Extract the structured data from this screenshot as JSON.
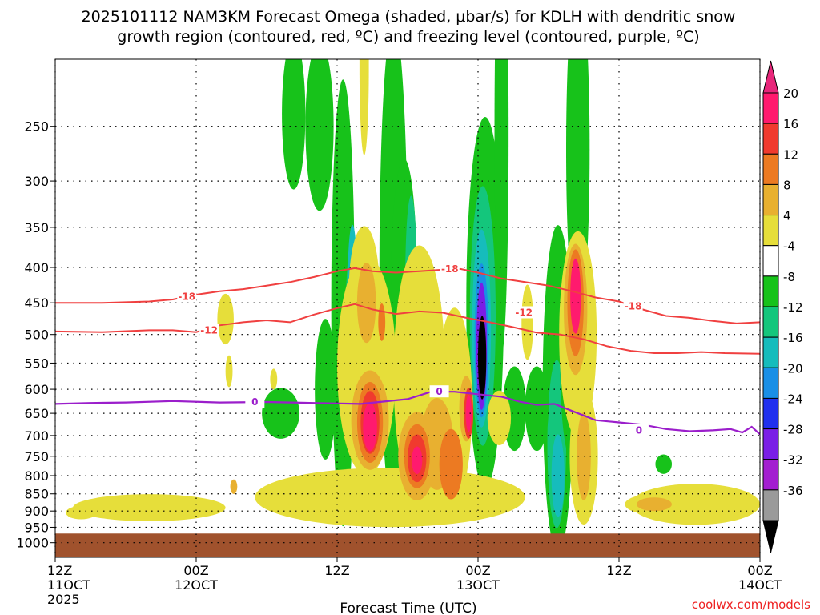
{
  "chart_data": {
    "type": "heatmap",
    "title_line1": "2025101112 NAM3KM Forecast Omega (shaded, μbar/s) for KDLH with dendritic snow",
    "title_line2": "growth region (contoured, red, ºC) and freezing level (contoured, purple, ºC)",
    "xlabel": "Forecast Time (UTC)",
    "credit": "coolwx.com/models",
    "x_range_hours": [
      0,
      60
    ],
    "x_ticks": [
      {
        "hour": 0,
        "l1": "12Z",
        "l2": "11OCT",
        "l3": "2025"
      },
      {
        "hour": 12,
        "l1": "00Z",
        "l2": "12OCT",
        "l3": ""
      },
      {
        "hour": 24,
        "l1": "12Z",
        "l2": "",
        "l3": ""
      },
      {
        "hour": 36,
        "l1": "00Z",
        "l2": "13OCT",
        "l3": ""
      },
      {
        "hour": 48,
        "l1": "12Z",
        "l2": "",
        "l3": ""
      },
      {
        "hour": 60,
        "l1": "00Z",
        "l2": "14OCT",
        "l3": ""
      }
    ],
    "y_unit": "hPa",
    "y_range": [
      200,
      1050
    ],
    "y_ticks": [
      "250",
      "300",
      "350",
      "400",
      "450",
      "500",
      "550",
      "600",
      "650",
      "700",
      "750",
      "800",
      "850",
      "900",
      "950",
      "1000"
    ],
    "colorbar": {
      "labels": [
        "20",
        "16",
        "12",
        "8",
        "4",
        "-4",
        "-8",
        "-12",
        "-16",
        "-20",
        "-24",
        "-28",
        "-32",
        "-36"
      ],
      "colors": [
        "#ff1a6e",
        "#f03a2e",
        "#ec7a22",
        "#e8b030",
        "#e6de3a",
        "#ffffff",
        "#17c21a",
        "#14c67c",
        "#16bcbc",
        "#1a8fe6",
        "#2030ee",
        "#7a1ee6",
        "#a31ed0",
        "#9a9a9a",
        "#000000"
      ],
      "top_arrow_color": "#e8267a",
      "bottom_arrow_color": "#000000"
    },
    "contour_labels": {
      "dgz_upper": "-18",
      "dgz_lower": "-12",
      "freezing": "0"
    },
    "dgz_minus18": [
      [
        0,
        450
      ],
      [
        4,
        450
      ],
      [
        8,
        448
      ],
      [
        10,
        445
      ],
      [
        12,
        438
      ],
      [
        14,
        433
      ],
      [
        16,
        430
      ],
      [
        18,
        425
      ],
      [
        20,
        420
      ],
      [
        22,
        413
      ],
      [
        24,
        405
      ],
      [
        25.5,
        401
      ],
      [
        27,
        405
      ],
      [
        29,
        407
      ],
      [
        31,
        405
      ],
      [
        33,
        403
      ],
      [
        34.5,
        402
      ],
      [
        36,
        407
      ],
      [
        38,
        415
      ],
      [
        40,
        420
      ],
      [
        42,
        425
      ],
      [
        44,
        433
      ],
      [
        46,
        442
      ],
      [
        48,
        448
      ],
      [
        50,
        460
      ],
      [
        52,
        470
      ],
      [
        54,
        473
      ],
      [
        56,
        478
      ],
      [
        58,
        482
      ],
      [
        60,
        480
      ]
    ],
    "dgz_minus12": [
      [
        0,
        495
      ],
      [
        4,
        496
      ],
      [
        8,
        493
      ],
      [
        10,
        493
      ],
      [
        12,
        496
      ],
      [
        14,
        485
      ],
      [
        16,
        480
      ],
      [
        18,
        477
      ],
      [
        20,
        480
      ],
      [
        22,
        468
      ],
      [
        24,
        458
      ],
      [
        25.5,
        452
      ],
      [
        27,
        460
      ],
      [
        29,
        467
      ],
      [
        31,
        463
      ],
      [
        33,
        465
      ],
      [
        35,
        473
      ],
      [
        37,
        480
      ],
      [
        39,
        488
      ],
      [
        41,
        497
      ],
      [
        43,
        500
      ],
      [
        45,
        508
      ],
      [
        47,
        520
      ],
      [
        49,
        528
      ],
      [
        51,
        532
      ],
      [
        53,
        532
      ],
      [
        55,
        530
      ],
      [
        57,
        532
      ],
      [
        60,
        533
      ]
    ],
    "freezing_level": [
      [
        0,
        630
      ],
      [
        3,
        628
      ],
      [
        6,
        627
      ],
      [
        10,
        624
      ],
      [
        14,
        627
      ],
      [
        18,
        626
      ],
      [
        22,
        628
      ],
      [
        26,
        630
      ],
      [
        28,
        625
      ],
      [
        30,
        620
      ],
      [
        32,
        605
      ],
      [
        34,
        605
      ],
      [
        36,
        610
      ],
      [
        38,
        615
      ],
      [
        39.5,
        625
      ],
      [
        41,
        632
      ],
      [
        42.5,
        630
      ],
      [
        44,
        645
      ],
      [
        46,
        665
      ],
      [
        48,
        670
      ],
      [
        50,
        675
      ],
      [
        52,
        685
      ],
      [
        54,
        690
      ],
      [
        56,
        688
      ],
      [
        57.5,
        685
      ],
      [
        58.5,
        693
      ],
      [
        59.3,
        680
      ],
      [
        60,
        697
      ]
    ],
    "omega_cells": [
      {
        "t": 19.2,
        "p": 650,
        "rx": 1.6,
        "rp": 55,
        "value": -8
      },
      {
        "t": 23,
        "p": 600,
        "rx": 0.9,
        "rp": 140,
        "value": -8
      },
      {
        "t": 24.5,
        "p": 450,
        "rx": 1.0,
        "rp": 320,
        "value": -8
      },
      {
        "t": 25.2,
        "p": 500,
        "rx": 0.5,
        "rp": 150,
        "value": -12
      },
      {
        "t": 25.3,
        "p": 420,
        "rx": 0.4,
        "rp": 80,
        "value": -16
      },
      {
        "t": 22.5,
        "p": 250,
        "rx": 1.2,
        "rp": 70,
        "value": -8
      },
      {
        "t": 20.3,
        "p": 240,
        "rx": 1.0,
        "rp": 60,
        "value": -8
      },
      {
        "t": 28.8,
        "p": 400,
        "rx": 1.2,
        "rp": 310,
        "value": -8
      },
      {
        "t": 29.7,
        "p": 420,
        "rx": 1.1,
        "rp": 170,
        "value": -8
      },
      {
        "t": 30.3,
        "p": 420,
        "rx": 0.5,
        "rp": 120,
        "value": -12
      },
      {
        "t": 36.6,
        "p": 450,
        "rx": 1.6,
        "rp": 270,
        "value": -8
      },
      {
        "t": 36.4,
        "p": 470,
        "rx": 1.1,
        "rp": 200,
        "value": -12
      },
      {
        "t": 36.3,
        "p": 490,
        "rx": 0.8,
        "rp": 160,
        "value": -16
      },
      {
        "t": 36.3,
        "p": 510,
        "rx": 0.6,
        "rp": 130,
        "value": -20
      },
      {
        "t": 36.3,
        "p": 520,
        "rx": 0.45,
        "rp": 110,
        "value": -28
      },
      {
        "t": 36.35,
        "p": 540,
        "rx": 0.35,
        "rp": 75,
        "value": -36
      },
      {
        "t": 38.0,
        "p": 255,
        "rx": 0.6,
        "rp": 180,
        "value": -8
      },
      {
        "t": 39.1,
        "p": 640,
        "rx": 1.0,
        "rp": 90,
        "value": -8
      },
      {
        "t": 42.8,
        "p": 600,
        "rx": 1.3,
        "rp": 320,
        "value": -8
      },
      {
        "t": 42.7,
        "p": 720,
        "rx": 0.8,
        "rp": 200,
        "value": -12
      },
      {
        "t": 42.8,
        "p": 800,
        "rx": 0.55,
        "rp": 110,
        "value": -16
      },
      {
        "t": 44.5,
        "p": 270,
        "rx": 1.0,
        "rp": 150,
        "value": -8
      },
      {
        "t": 44.0,
        "p": 560,
        "rx": 1.0,
        "rp": 170,
        "value": -8
      },
      {
        "t": 41.0,
        "p": 640,
        "rx": 1.0,
        "rp": 90,
        "value": -8
      },
      {
        "t": 51.8,
        "p": 770,
        "rx": 0.7,
        "rp": 25,
        "value": -8
      }
    ],
    "omega_positive_cells": [
      {
        "t": 28.5,
        "p": 860,
        "rx": 11.5,
        "rp": 85,
        "value": 4
      },
      {
        "t": 8.0,
        "p": 890,
        "rx": 6.5,
        "rp": 40,
        "value": 4
      },
      {
        "t": 54.5,
        "p": 880,
        "rx": 5.5,
        "rp": 60,
        "value": 4
      },
      {
        "t": 2.2,
        "p": 905,
        "rx": 1.3,
        "rp": 20,
        "value": 4
      },
      {
        "t": 14.5,
        "p": 475,
        "rx": 0.7,
        "rp": 40,
        "value": 4
      },
      {
        "t": 14.8,
        "p": 565,
        "rx": 0.3,
        "rp": 30,
        "value": 4
      },
      {
        "t": 26.5,
        "p": 555,
        "rx": 2.5,
        "rp": 200,
        "value": 4
      },
      {
        "t": 26.3,
        "p": 430,
        "rx": 1.3,
        "rp": 90,
        "value": 4
      },
      {
        "t": 31.0,
        "p": 570,
        "rx": 2.2,
        "rp": 240,
        "value": 4
      },
      {
        "t": 34.0,
        "p": 630,
        "rx": 1.5,
        "rp": 200,
        "value": 4
      },
      {
        "t": 37.8,
        "p": 660,
        "rx": 1.0,
        "rp": 60,
        "value": 4
      },
      {
        "t": 40.2,
        "p": 480,
        "rx": 0.5,
        "rp": 60,
        "value": 4
      },
      {
        "t": 44.5,
        "p": 500,
        "rx": 1.6,
        "rp": 170,
        "value": 4
      },
      {
        "t": 45.0,
        "p": 750,
        "rx": 1.2,
        "rp": 170,
        "value": 4
      },
      {
        "t": 26.3,
        "p": 205,
        "rx": 0.4,
        "rp": 60,
        "value": 4
      },
      {
        "t": 51.0,
        "p": 880,
        "rx": 2.5,
        "rp": 30,
        "value": 4
      },
      {
        "t": 18.6,
        "p": 580,
        "rx": 0.3,
        "rp": 20,
        "value": 4
      },
      {
        "t": 26.8,
        "p": 665,
        "rx": 1.6,
        "rp": 110,
        "value": 8
      },
      {
        "t": 26.5,
        "p": 450,
        "rx": 0.8,
        "rp": 60,
        "value": 8
      },
      {
        "t": 30.8,
        "p": 750,
        "rx": 1.6,
        "rp": 110,
        "value": 8
      },
      {
        "t": 32.5,
        "p": 720,
        "rx": 1.4,
        "rp": 110,
        "value": 8
      },
      {
        "t": 33.7,
        "p": 770,
        "rx": 1.0,
        "rp": 90,
        "value": 12
      },
      {
        "t": 35.0,
        "p": 640,
        "rx": 0.6,
        "rp": 70,
        "value": 8
      },
      {
        "t": 44.3,
        "p": 460,
        "rx": 1.0,
        "rp": 100,
        "value": 8
      },
      {
        "t": 44.3,
        "p": 450,
        "rx": 0.7,
        "rp": 80,
        "value": 12
      },
      {
        "t": 45.0,
        "p": 750,
        "rx": 0.6,
        "rp": 110,
        "value": 8
      },
      {
        "t": 51.0,
        "p": 880,
        "rx": 1.5,
        "rp": 20,
        "value": 8
      },
      {
        "t": 15.2,
        "p": 830,
        "rx": 0.3,
        "rp": 20,
        "value": 8
      },
      {
        "t": 26.8,
        "p": 670,
        "rx": 1.1,
        "rp": 90,
        "value": 12
      },
      {
        "t": 26.8,
        "p": 670,
        "rx": 0.8,
        "rp": 70,
        "value": 16
      },
      {
        "t": 26.8,
        "p": 680,
        "rx": 0.6,
        "rp": 55,
        "value": 20
      },
      {
        "t": 30.8,
        "p": 750,
        "rx": 1.1,
        "rp": 80,
        "value": 12
      },
      {
        "t": 30.8,
        "p": 755,
        "rx": 0.8,
        "rp": 60,
        "value": 16
      },
      {
        "t": 30.8,
        "p": 760,
        "rx": 0.45,
        "rp": 35,
        "value": 20
      },
      {
        "t": 35.2,
        "p": 650,
        "rx": 0.4,
        "rp": 55,
        "value": 16
      },
      {
        "t": 35.2,
        "p": 650,
        "rx": 0.25,
        "rp": 40,
        "value": 20
      },
      {
        "t": 44.3,
        "p": 440,
        "rx": 0.45,
        "rp": 55,
        "value": 20
      },
      {
        "t": 27.8,
        "p": 480,
        "rx": 0.3,
        "rp": 30,
        "value": 12
      }
    ],
    "ground_fill": {
      "color": "#a0522d",
      "start_hPa": 970
    }
  }
}
